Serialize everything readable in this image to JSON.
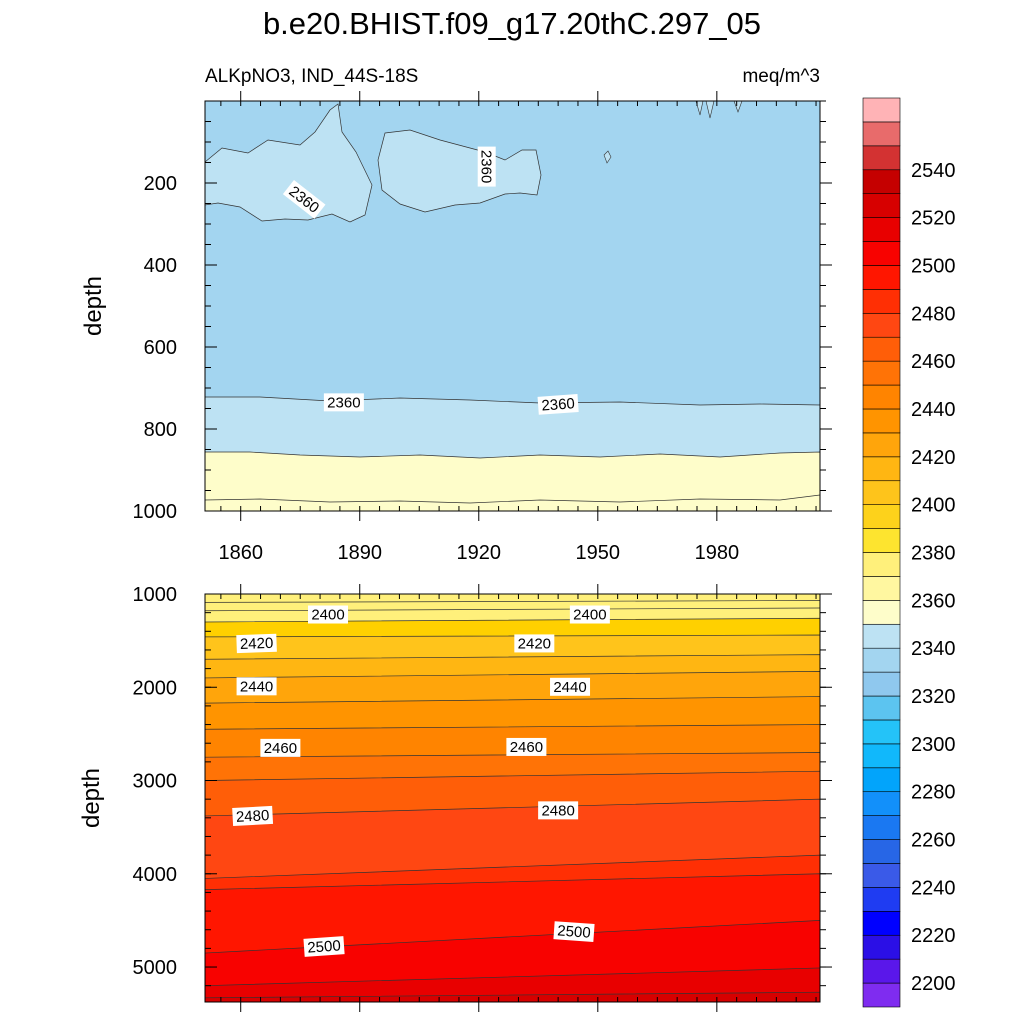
{
  "chart_data": {
    "type": "heatmap",
    "title": "b.e20.BHIST.f09_g17.20thC.297_05",
    "subtitle_left": "ALKpNO3, IND_44S-18S",
    "subtitle_right": "meq/m^3",
    "ylabel": "depth",
    "x_ticks": [
      "1860",
      "1890",
      "1920",
      "1950",
      "1980"
    ],
    "x_tick_values": [
      1860,
      1890,
      1920,
      1950,
      1980
    ],
    "xlim": [
      1851,
      2006
    ],
    "grid": false,
    "legend_position": "right",
    "top_panel": {
      "ylim": [
        0,
        1000
      ],
      "y_ticks": [
        "200",
        "400",
        "600",
        "800",
        "1000"
      ],
      "y_tick_values": [
        200,
        400,
        600,
        800,
        1000
      ],
      "contour_labels": [
        {
          "text": "2360",
          "year": 1876,
          "depth": 240,
          "angle": 38
        },
        {
          "text": "2360",
          "year": 1922,
          "depth": 160,
          "angle": 90
        },
        {
          "text": "2360",
          "year": 1886,
          "depth": 735,
          "angle": 0
        },
        {
          "text": "2360",
          "year": 1940,
          "depth": 740,
          "angle": -4
        }
      ]
    },
    "bottom_panel": {
      "ylim": [
        1000,
        5375
      ],
      "y_ticks": [
        "1000",
        "2000",
        "3000",
        "4000",
        "5000"
      ],
      "y_tick_values": [
        1000,
        2000,
        3000,
        4000,
        5000
      ],
      "contour_labels": [
        {
          "text": "2400",
          "year": 1882,
          "depth": 1220,
          "angle": 0
        },
        {
          "text": "2400",
          "year": 1948,
          "depth": 1220,
          "angle": 0
        },
        {
          "text": "2420",
          "year": 1864,
          "depth": 1530,
          "angle": -2
        },
        {
          "text": "2420",
          "year": 1934,
          "depth": 1530,
          "angle": 0
        },
        {
          "text": "2440",
          "year": 1864,
          "depth": 1990,
          "angle": 0
        },
        {
          "text": "2440",
          "year": 1943,
          "depth": 1995,
          "angle": 0
        },
        {
          "text": "2460",
          "year": 1870,
          "depth": 2650,
          "angle": 0
        },
        {
          "text": "2460",
          "year": 1932,
          "depth": 2640,
          "angle": 0
        },
        {
          "text": "2480",
          "year": 1863,
          "depth": 3380,
          "angle": -3
        },
        {
          "text": "2480",
          "year": 1940,
          "depth": 3320,
          "angle": 0
        },
        {
          "text": "2500",
          "year": 1881,
          "depth": 4780,
          "angle": -4
        },
        {
          "text": "2500",
          "year": 1944,
          "depth": 4620,
          "angle": 4
        }
      ]
    },
    "colorbar": {
      "colors": [
        "#7f2cf0",
        "#5a17ea",
        "#2b0fe6",
        "#0000ff",
        "#1f3cf2",
        "#3a5ae8",
        "#2766e6",
        "#1a78f2",
        "#1290fa",
        "#02a4fb",
        "#11b8fb",
        "#24c3f8",
        "#5cc4f0",
        "#8fc8ee",
        "#a3d5f0",
        "#bde2f3",
        "#fefdca",
        "#fff7a0",
        "#fff07b",
        "#fde42f",
        "#fdd21b",
        "#fec41b",
        "#ffb612",
        "#ffa50b",
        "#ff9400",
        "#ff8400",
        "#ff7306",
        "#ff5e08",
        "#ff4712",
        "#ff2f04",
        "#ff1600",
        "#f80200",
        "#e80000",
        "#d70000",
        "#c50000",
        "#d33232",
        "#e86b6b",
        "#ffb3b6"
      ],
      "tick_labels": [
        "2200",
        "2220",
        "2240",
        "2260",
        "2280",
        "2300",
        "2320",
        "2340",
        "2360",
        "2380",
        "2400",
        "2420",
        "2440",
        "2460",
        "2480",
        "2500",
        "2520",
        "2540"
      ]
    }
  }
}
